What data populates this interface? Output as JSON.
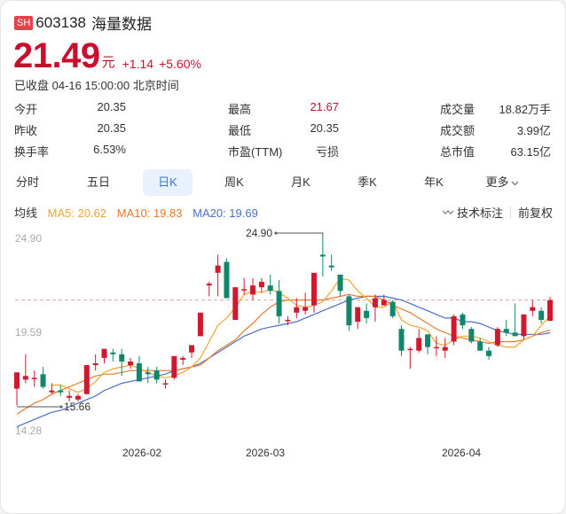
{
  "header": {
    "exchange_badge": "SH",
    "code": "603138",
    "name": "海量数据",
    "price": "21.49",
    "unit": "元",
    "change": "+1.14",
    "change_pct": "+5.60%",
    "status_time": "已收盘 04-16 15:00:00 北京时间"
  },
  "stats": [
    {
      "label": "今开",
      "value": "20.35"
    },
    {
      "label": "昨收",
      "value": "20.35"
    },
    {
      "label": "换手率",
      "value": "6.53%"
    },
    {
      "label": "最高",
      "value": "21.67"
    },
    {
      "label": "最低",
      "value": "20.35"
    },
    {
      "label": "市盈(TTM)",
      "value": "亏损"
    },
    {
      "label": "成交量",
      "value": "18.82万手"
    },
    {
      "label": "成交额",
      "value": "3.99亿"
    },
    {
      "label": "总市值",
      "value": "63.15亿"
    }
  ],
  "tabs": [
    {
      "label": "分时"
    },
    {
      "label": "五日"
    },
    {
      "label": "日K"
    },
    {
      "label": "周K"
    },
    {
      "label": "月K"
    },
    {
      "label": "季K"
    },
    {
      "label": "年K"
    },
    {
      "label": "更多"
    }
  ],
  "active_tab": "日K",
  "ma_bar": {
    "label": "均线",
    "ma5": "MA5: 20.62",
    "ma10": "MA10: 19.83",
    "ma20": "MA20: 19.69",
    "tech_label": "技术标注",
    "adjust_label": "前复权"
  },
  "colors": {
    "up": "#d0182e",
    "down": "#10876a",
    "ma5": "#f0a530",
    "ma10": "#e8792a",
    "ma20": "#4a6fc8",
    "accent": "#3a78d6"
  },
  "chart_data": {
    "type": "candlestick",
    "title": "603138 海量数据 日K",
    "y_ticks": [
      "24.90",
      "19.59",
      "14.28"
    ],
    "ylim": [
      14.28,
      24.9
    ],
    "x_ticks": [
      "2026-02",
      "2026-03",
      "2026-04"
    ],
    "annotations": [
      {
        "text": "24.90",
        "type": "max"
      },
      {
        "text": "15.66",
        "type": "min"
      }
    ],
    "reference_line": 21.49,
    "candles": [
      {
        "o": 16.6,
        "h": 17.5,
        "l": 15.66,
        "c": 17.5
      },
      {
        "o": 17.1,
        "h": 18.5,
        "l": 16.9,
        "c": 17.3
      },
      {
        "o": 17.2,
        "h": 17.6,
        "l": 16.7,
        "c": 17.2
      },
      {
        "o": 17.4,
        "h": 17.8,
        "l": 16.6,
        "c": 16.7
      },
      {
        "o": 16.4,
        "h": 16.9,
        "l": 16.3,
        "c": 16.5
      },
      {
        "o": 16.5,
        "h": 16.8,
        "l": 16.2,
        "c": 16.4
      },
      {
        "o": 16.1,
        "h": 16.5,
        "l": 15.9,
        "c": 16.2
      },
      {
        "o": 16.0,
        "h": 16.3,
        "l": 15.9,
        "c": 16.2
      },
      {
        "o": 16.3,
        "h": 17.9,
        "l": 16.3,
        "c": 17.9
      },
      {
        "o": 17.9,
        "h": 18.5,
        "l": 17.6,
        "c": 18.0
      },
      {
        "o": 18.3,
        "h": 18.8,
        "l": 18.0,
        "c": 18.8
      },
      {
        "o": 18.6,
        "h": 18.8,
        "l": 18.1,
        "c": 18.5
      },
      {
        "o": 18.5,
        "h": 18.8,
        "l": 17.3,
        "c": 18.1
      },
      {
        "o": 17.9,
        "h": 18.3,
        "l": 17.7,
        "c": 18.1
      },
      {
        "o": 18.0,
        "h": 18.4,
        "l": 17.0,
        "c": 17.0
      },
      {
        "o": 17.5,
        "h": 17.8,
        "l": 16.9,
        "c": 17.4
      },
      {
        "o": 17.6,
        "h": 17.8,
        "l": 16.9,
        "c": 17.1
      },
      {
        "o": 16.9,
        "h": 17.1,
        "l": 16.6,
        "c": 16.9
      },
      {
        "o": 17.2,
        "h": 18.4,
        "l": 17.1,
        "c": 18.4
      },
      {
        "o": 18.2,
        "h": 18.4,
        "l": 17.9,
        "c": 18.3
      },
      {
        "o": 18.6,
        "h": 18.9,
        "l": 18.3,
        "c": 19.0
      },
      {
        "o": 19.5,
        "h": 20.8,
        "l": 19.5,
        "c": 20.8
      },
      {
        "o": 22.3,
        "h": 22.5,
        "l": 21.7,
        "c": 22.4
      },
      {
        "o": 23.0,
        "h": 24.0,
        "l": 21.7,
        "c": 23.4
      },
      {
        "o": 23.6,
        "h": 23.8,
        "l": 21.6,
        "c": 21.6
      },
      {
        "o": 20.4,
        "h": 22.2,
        "l": 20.4,
        "c": 22.2
      },
      {
        "o": 22.1,
        "h": 22.7,
        "l": 21.8,
        "c": 22.1
      },
      {
        "o": 21.8,
        "h": 22.7,
        "l": 21.5,
        "c": 22.3
      },
      {
        "o": 22.2,
        "h": 22.7,
        "l": 21.9,
        "c": 22.5
      },
      {
        "o": 22.3,
        "h": 22.9,
        "l": 21.8,
        "c": 22.0
      },
      {
        "o": 22.0,
        "h": 22.6,
        "l": 20.2,
        "c": 20.6
      },
      {
        "o": 20.4,
        "h": 20.6,
        "l": 20.1,
        "c": 20.4
      },
      {
        "o": 20.8,
        "h": 21.6,
        "l": 20.5,
        "c": 21.1
      },
      {
        "o": 20.9,
        "h": 21.9,
        "l": 20.7,
        "c": 21.1
      },
      {
        "o": 21.2,
        "h": 22.7,
        "l": 20.8,
        "c": 23.0
      },
      {
        "o": 24.0,
        "h": 24.9,
        "l": 22.8,
        "c": 23.9
      },
      {
        "o": 23.4,
        "h": 24.0,
        "l": 23.1,
        "c": 23.3
      },
      {
        "o": 22.9,
        "h": 22.9,
        "l": 21.7,
        "c": 22.0
      },
      {
        "o": 21.7,
        "h": 21.8,
        "l": 19.8,
        "c": 20.1
      },
      {
        "o": 20.3,
        "h": 20.9,
        "l": 19.9,
        "c": 21.1
      },
      {
        "o": 20.9,
        "h": 21.3,
        "l": 20.2,
        "c": 20.5
      },
      {
        "o": 21.1,
        "h": 21.8,
        "l": 20.3,
        "c": 21.6
      },
      {
        "o": 21.2,
        "h": 21.8,
        "l": 21.2,
        "c": 21.5
      },
      {
        "o": 21.4,
        "h": 21.5,
        "l": 20.5,
        "c": 20.6
      },
      {
        "o": 19.9,
        "h": 20.1,
        "l": 18.4,
        "c": 18.7
      },
      {
        "o": 18.8,
        "h": 18.9,
        "l": 17.7,
        "c": 18.8
      },
      {
        "o": 18.7,
        "h": 19.9,
        "l": 18.6,
        "c": 19.4
      },
      {
        "o": 19.6,
        "h": 19.6,
        "l": 18.5,
        "c": 18.9
      },
      {
        "o": 18.9,
        "h": 19.5,
        "l": 18.4,
        "c": 18.9
      },
      {
        "o": 18.7,
        "h": 19.4,
        "l": 18.3,
        "c": 18.9
      },
      {
        "o": 19.2,
        "h": 20.7,
        "l": 19.0,
        "c": 20.6
      },
      {
        "o": 20.7,
        "h": 20.8,
        "l": 19.9,
        "c": 20.1
      },
      {
        "o": 19.9,
        "h": 20.0,
        "l": 19.1,
        "c": 19.2
      },
      {
        "o": 19.2,
        "h": 19.4,
        "l": 18.7,
        "c": 18.7
      },
      {
        "o": 18.7,
        "h": 18.9,
        "l": 18.2,
        "c": 18.4
      },
      {
        "o": 19.0,
        "h": 20.0,
        "l": 18.9,
        "c": 19.9
      },
      {
        "o": 19.9,
        "h": 20.4,
        "l": 19.5,
        "c": 19.7
      },
      {
        "o": 19.7,
        "h": 21.3,
        "l": 19.6,
        "c": 19.5
      },
      {
        "o": 19.5,
        "h": 20.6,
        "l": 19.3,
        "c": 20.7
      },
      {
        "o": 20.9,
        "h": 21.5,
        "l": 20.6,
        "c": 21.1
      },
      {
        "o": 20.9,
        "h": 21.1,
        "l": 20.2,
        "c": 20.4
      },
      {
        "o": 20.35,
        "h": 21.67,
        "l": 20.35,
        "c": 21.49
      }
    ],
    "ma5": [
      null,
      null,
      null,
      null,
      16.8,
      16.8,
      16.6,
      16.4,
      16.6,
      17.0,
      17.5,
      17.7,
      17.8,
      17.9,
      17.7,
      17.5,
      17.3,
      17.2,
      17.3,
      17.5,
      17.8,
      18.3,
      19.2,
      20.1,
      20.5,
      21.1,
      21.8,
      22.0,
      21.9,
      22.1,
      21.9,
      21.6,
      21.2,
      21.1,
      21.2,
      21.4,
      22.0,
      22.7,
      22.6,
      22.0,
      21.6,
      21.1,
      21.1,
      21.4,
      20.4,
      20.1,
      20.0,
      19.8,
      19.1,
      19.0,
      19.3,
      19.5,
      19.5,
      19.4,
      19.2,
      19.0,
      18.9,
      18.9,
      19.3,
      19.5,
      20.1,
      20.62
    ],
    "ma10": [
      15.2,
      15.5,
      15.8,
      16.0,
      16.3,
      16.5,
      16.7,
      16.9,
      17.1,
      17.3,
      17.4,
      17.4,
      17.5,
      17.6,
      17.6,
      17.6,
      17.6,
      17.6,
      17.6,
      17.7,
      17.8,
      17.9,
      18.3,
      18.7,
      19.0,
      19.3,
      19.8,
      20.2,
      20.7,
      21.1,
      21.4,
      21.5,
      21.5,
      21.5,
      21.5,
      21.5,
      21.6,
      21.7,
      21.8,
      21.7,
      21.7,
      21.7,
      21.5,
      21.2,
      21.0,
      20.8,
      20.5,
      20.2,
      19.9,
      19.7,
      19.5,
      19.4,
      19.3,
      19.2,
      19.1,
      19.2,
      19.2,
      19.2,
      19.3,
      19.5,
      19.7,
      19.83
    ],
    "ma20": [
      14.5,
      14.7,
      14.9,
      15.1,
      15.3,
      15.4,
      15.6,
      15.8,
      16.0,
      16.2,
      16.5,
      16.7,
      16.9,
      17.0,
      17.1,
      17.2,
      17.3,
      17.4,
      17.6,
      17.7,
      17.8,
      18.0,
      18.3,
      18.6,
      18.9,
      19.2,
      19.5,
      19.7,
      19.9,
      20.0,
      20.1,
      20.2,
      20.3,
      20.5,
      20.7,
      20.9,
      21.1,
      21.3,
      21.5,
      21.6,
      21.7,
      21.7,
      21.7,
      21.6,
      21.5,
      21.3,
      21.1,
      20.9,
      20.7,
      20.5,
      20.5,
      20.3,
      20.3,
      20.2,
      20.0,
      19.8,
      19.7,
      19.6,
      19.6,
      19.6,
      19.6,
      19.69
    ]
  }
}
